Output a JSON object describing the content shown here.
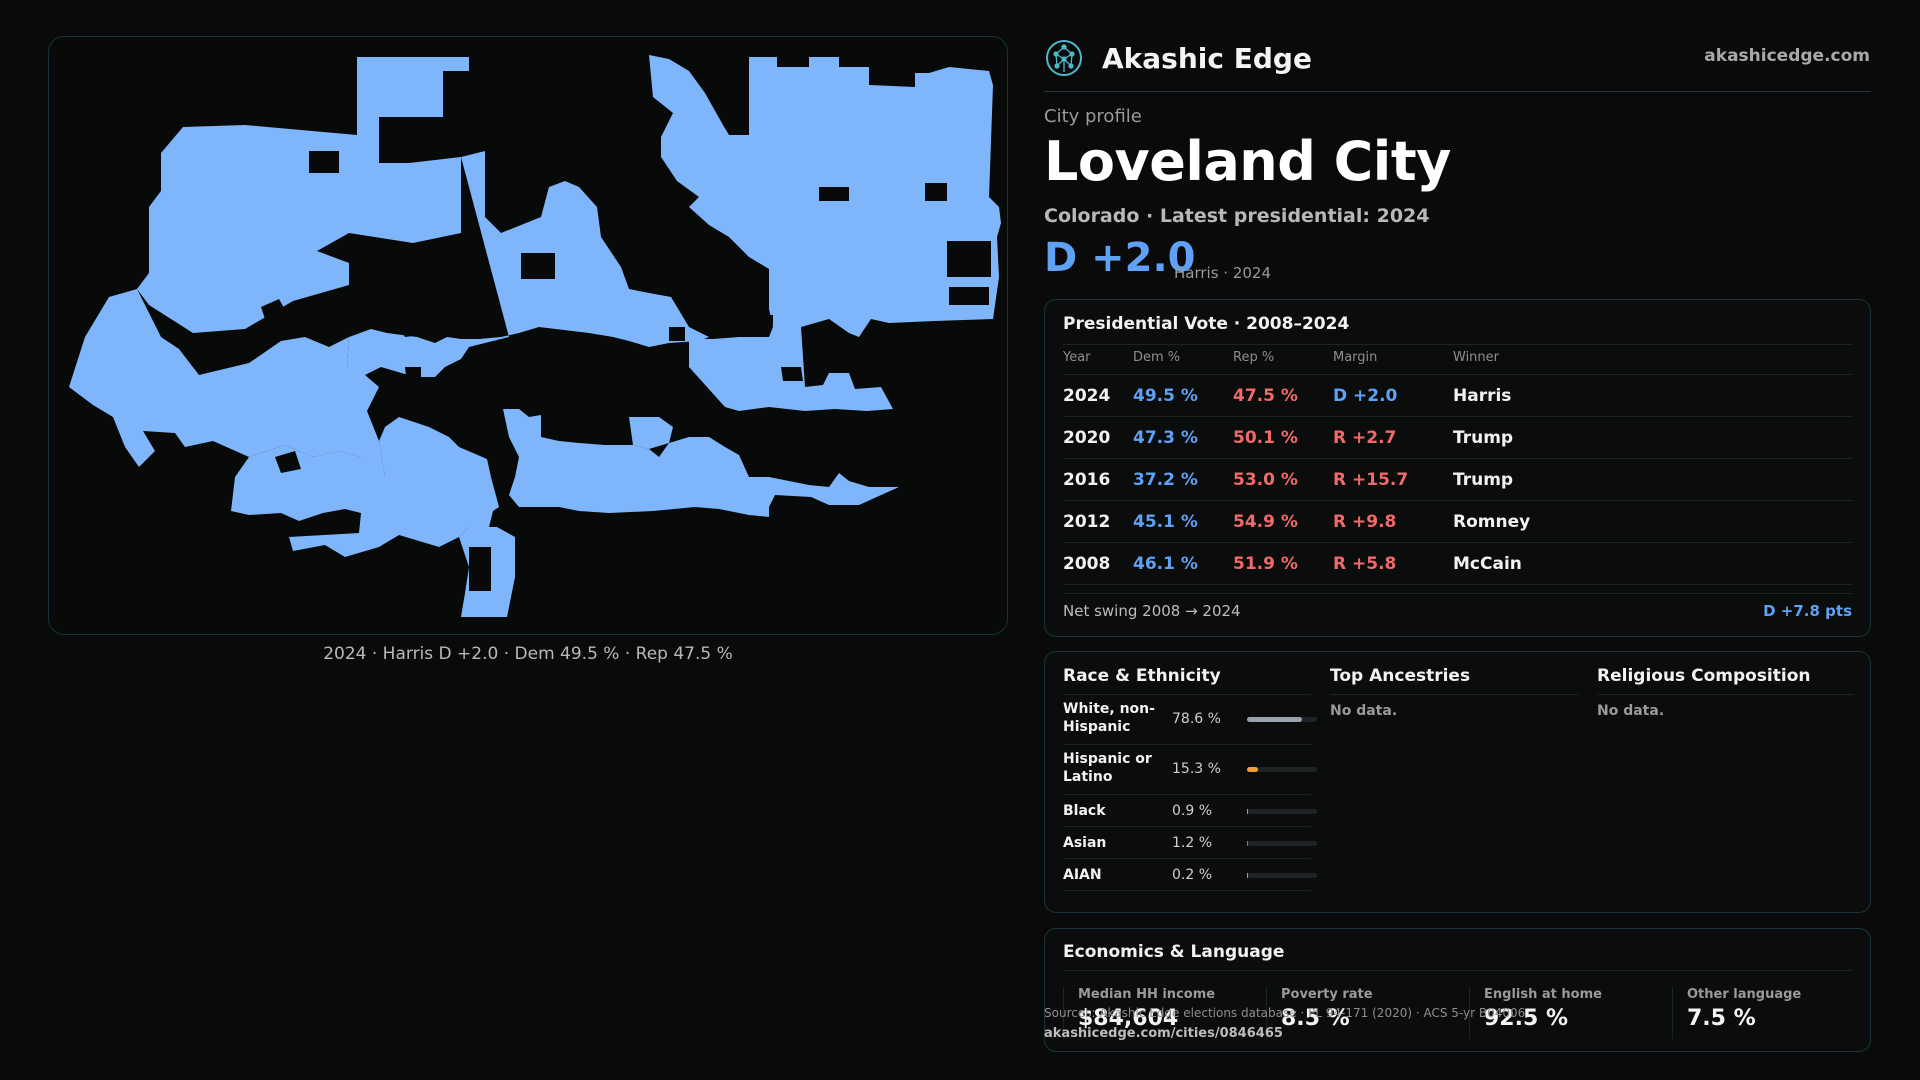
{
  "header": {
    "brand_name": "Akashic Edge",
    "domain": "akashicedge.com",
    "logo_icon": "tree-of-life-icon"
  },
  "profile": {
    "eyebrow": "City profile",
    "city": "Loveland City",
    "subtitle": "Colorado · Latest presidential: 2024",
    "margin": "D +2.0",
    "margin_note": "Harris · 2024"
  },
  "map": {
    "fill_color": "#7fb6fb",
    "caption": "2024 · Harris D +2.0 · Dem 49.5 % · Rep 47.5 %"
  },
  "vote": {
    "title": "Presidential Vote · 2008–2024",
    "headers": {
      "year": "Year",
      "dem": "Dem %",
      "rep": "Rep %",
      "margin": "Margin",
      "winner": "Winner"
    },
    "rows": [
      {
        "year": "2024",
        "dem": "49.5 %",
        "rep": "47.5 %",
        "margin": "D +2.0",
        "party": "D",
        "winner": "Harris"
      },
      {
        "year": "2020",
        "dem": "47.3 %",
        "rep": "50.1 %",
        "margin": "R +2.7",
        "party": "R",
        "winner": "Trump"
      },
      {
        "year": "2016",
        "dem": "37.2 %",
        "rep": "53.0 %",
        "margin": "R +15.7",
        "party": "R",
        "winner": "Trump"
      },
      {
        "year": "2012",
        "dem": "45.1 %",
        "rep": "54.9 %",
        "margin": "R +9.8",
        "party": "R",
        "winner": "Romney"
      },
      {
        "year": "2008",
        "dem": "46.1 %",
        "rep": "51.9 %",
        "margin": "R +5.8",
        "party": "R",
        "winner": "McCain"
      }
    ],
    "swing_label": "Net swing 2008 → 2024",
    "swing_value": "D +7.8 pts"
  },
  "demographics": {
    "race_title": "Race & Ethnicity",
    "race": [
      {
        "label": "White, non-Hispanic",
        "pct": "78.6 %",
        "value": 0.786,
        "color": "#9aa3ad"
      },
      {
        "label": "Hispanic or Latino",
        "pct": "15.3 %",
        "value": 0.153,
        "color": "#f0a030"
      },
      {
        "label": "Black",
        "pct": "0.9 %",
        "value": 0.009,
        "color": "#9aa3ad"
      },
      {
        "label": "Asian",
        "pct": "1.2 %",
        "value": 0.012,
        "color": "#3aa88a"
      },
      {
        "label": "AIAN",
        "pct": "0.2 %",
        "value": 0.002,
        "color": "#9aa3ad"
      }
    ],
    "ancestry_title": "Top Ancestries",
    "ancestry_empty": "No data.",
    "religion_title": "Religious Composition",
    "religion_empty": "No data."
  },
  "economics": {
    "title": "Economics & Language",
    "stats": [
      {
        "label": "Median HH income",
        "value": "$84,604"
      },
      {
        "label": "Poverty rate",
        "value": "8.5 %"
      },
      {
        "label": "English at home",
        "value": "92.5 %"
      },
      {
        "label": "Other language",
        "value": "7.5 %"
      }
    ]
  },
  "footer": {
    "sources": "Sources: Akashic Edge elections database · PL 94-171 (2020) · ACS 5-yr B04006",
    "url": "akashicedge.com/cities/0846465"
  }
}
